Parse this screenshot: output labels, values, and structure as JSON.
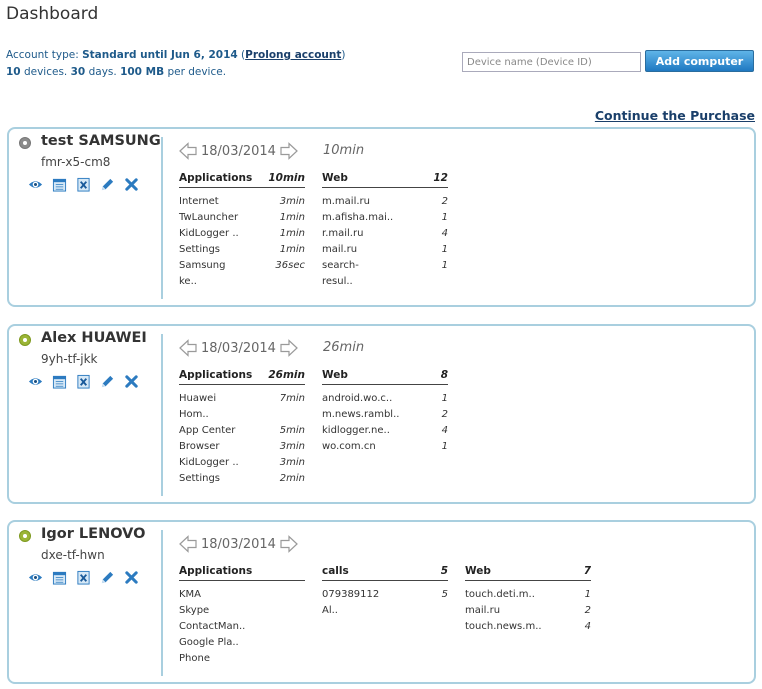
{
  "page": {
    "title": "Dashboard"
  },
  "account": {
    "type_label": "Account type:",
    "type_value": "Standard until Jun 6, 2014",
    "prolong_label": "Prolong account",
    "devices_count": "10",
    "devices_text": "devices.",
    "days_count": "30",
    "days_text": "days.",
    "size": "100 MB",
    "size_text": "per device."
  },
  "device_input": {
    "placeholder": "Device name (Device ID)",
    "value": ""
  },
  "add_button": {
    "label": "Add computer"
  },
  "continue_link": {
    "label": "Continue the Purchase"
  },
  "icons": [
    "eye-icon",
    "calendar-icon",
    "delete-log-icon",
    "edit-pencil-icon",
    "remove-x-icon",
    "arrow-left-icon",
    "arrow-right-icon",
    "status-dot-icon"
  ],
  "colors": {
    "accent_blue": "#1e78c1",
    "card_border": "#a9cfdf",
    "status_online": "#9bb536",
    "status_offline": "#8b8b8b",
    "link": "#1a3f6a"
  },
  "devices": [
    {
      "name": "test SAMSUNG",
      "id": "fmr-x5-cm8",
      "status": "offline",
      "date": "18/03/2014",
      "total": "10min",
      "columns": [
        {
          "title": "Applications",
          "total": "10min",
          "rows": [
            {
              "label": "Internet",
              "value": "3min"
            },
            {
              "label": "TwLauncher",
              "value": "1min"
            },
            {
              "label": "KidLogger ..",
              "value": "1min"
            },
            {
              "label": "Settings",
              "value": "1min"
            },
            {
              "label": "Samsung",
              "value": "36sec"
            },
            {
              "label": "ke..",
              "value": ""
            }
          ]
        },
        {
          "title": "Web",
          "total": "12",
          "rows": [
            {
              "label": "m.mail.ru",
              "value": "2"
            },
            {
              "label": "m.afisha.mai..",
              "value": "1"
            },
            {
              "label": "r.mail.ru",
              "value": "4"
            },
            {
              "label": "mail.ru",
              "value": "1"
            },
            {
              "label": "search-",
              "value": "1"
            },
            {
              "label": "resul..",
              "value": ""
            }
          ]
        }
      ]
    },
    {
      "name": "Alex HUAWEI",
      "id": "9yh-tf-jkk",
      "status": "online",
      "date": "18/03/2014",
      "total": "26min",
      "columns": [
        {
          "title": "Applications",
          "total": "26min",
          "rows": [
            {
              "label": "Huawei",
              "value": "7min"
            },
            {
              "label": "Hom..",
              "value": ""
            },
            {
              "label": "App Center",
              "value": "5min"
            },
            {
              "label": "Browser",
              "value": "3min"
            },
            {
              "label": "KidLogger ..",
              "value": "3min"
            },
            {
              "label": "Settings",
              "value": "2min"
            }
          ]
        },
        {
          "title": "Web",
          "total": "8",
          "rows": [
            {
              "label": "android.wo.c..",
              "value": "1"
            },
            {
              "label": "m.news.rambl..",
              "value": "2"
            },
            {
              "label": "kidlogger.ne..",
              "value": "4"
            },
            {
              "label": "wo.com.cn",
              "value": "1"
            }
          ]
        }
      ]
    },
    {
      "name": "Igor LENOVO",
      "id": "dxe-tf-hwn",
      "status": "online",
      "date": "18/03/2014",
      "total": "",
      "columns": [
        {
          "title": "Applications",
          "total": "",
          "rows": [
            {
              "label": "KMA",
              "value": ""
            },
            {
              "label": "Skype",
              "value": ""
            },
            {
              "label": "ContactMan..",
              "value": ""
            },
            {
              "label": "Google Pla..",
              "value": ""
            },
            {
              "label": "Phone",
              "value": ""
            }
          ]
        },
        {
          "title": "calls",
          "total": "5",
          "rows": [
            {
              "label": "079389112",
              "value": "5"
            },
            {
              "label": "Al..",
              "value": ""
            }
          ]
        },
        {
          "title": "Web",
          "total": "7",
          "rows": [
            {
              "label": "touch.deti.m..",
              "value": "1"
            },
            {
              "label": "mail.ru",
              "value": "2"
            },
            {
              "label": "touch.news.m..",
              "value": "4"
            }
          ]
        }
      ]
    }
  ]
}
